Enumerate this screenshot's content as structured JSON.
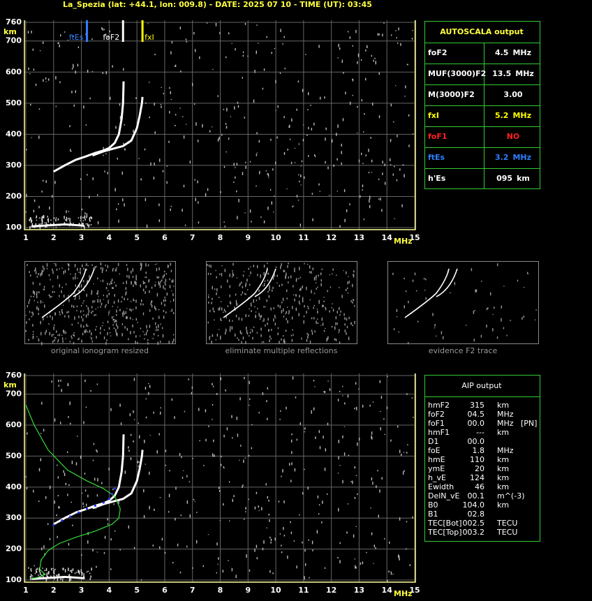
{
  "title": "La_Spezia (lat: +44.1, lon: 009.8) - DATE: 2025 07 10 - TIME (UT): 03:45",
  "top_plot": {
    "y_unit": "km",
    "x_unit": "MHz",
    "xlim": [
      1,
      15
    ],
    "ylim": [
      100,
      760
    ],
    "xticks": [
      1,
      2,
      3,
      4,
      5,
      6,
      7,
      8,
      9,
      10,
      11,
      12,
      13,
      14,
      15
    ],
    "yticks": [
      100,
      200,
      300,
      400,
      500,
      600,
      700,
      760
    ],
    "markers": [
      {
        "label": "ftEs",
        "value": 3.2,
        "color": "#2f7fff"
      },
      {
        "label": "foF2",
        "value": 4.5,
        "color": "#ffffff"
      },
      {
        "label": "fxI",
        "value": 5.2,
        "color": "#ffff00"
      }
    ],
    "traces": [
      {
        "x": [
          2.0,
          2.4,
          2.8,
          3.2,
          3.5,
          3.8,
          4.0,
          4.2,
          4.35,
          4.45,
          4.5,
          4.52
        ],
        "y": [
          280,
          300,
          318,
          330,
          340,
          348,
          356,
          372,
          400,
          450,
          500,
          570
        ]
      },
      {
        "x": [
          3.4,
          3.8,
          4.2,
          4.5,
          4.8,
          5.0,
          5.1,
          5.18,
          5.2
        ],
        "y": [
          332,
          345,
          355,
          362,
          380,
          420,
          460,
          500,
          520
        ]
      },
      {
        "x": [
          1.2,
          1.6,
          2.0,
          2.4,
          2.8,
          3.1
        ],
        "y": [
          104,
          106,
          108,
          110,
          108,
          106
        ]
      }
    ]
  },
  "autoscala": {
    "title": "AUTOSCALA output",
    "rows": [
      {
        "name": "foF2",
        "value": "4.5",
        "unit": "MHz",
        "color": "#ffffff"
      },
      {
        "name": "MUF(3000)F2",
        "value": "13.5",
        "unit": "MHz",
        "color": "#ffffff"
      },
      {
        "name": "M(3000)F2",
        "value": "3.00",
        "color": "#ffffff"
      },
      {
        "name": "fxI",
        "value": "5.2",
        "unit": "MHz",
        "color": "#ffff00"
      },
      {
        "name": "foF1",
        "value": "NO",
        "color": "#ff2020"
      },
      {
        "name": "ftEs",
        "value": "3.2",
        "unit": "MHz",
        "color": "#2f7fff"
      },
      {
        "name": "h'Es",
        "value": "095",
        "unit": "km",
        "color": "#ffffff"
      }
    ]
  },
  "thumbnails": [
    {
      "caption": "original ionogram resized"
    },
    {
      "caption": "eliminate multiple reflections"
    },
    {
      "caption": "evidence F2 trace"
    }
  ],
  "bottom_plot": {
    "y_unit": "km",
    "x_unit": "MHz",
    "xlim": [
      1,
      15
    ],
    "ylim": [
      100,
      760
    ],
    "xticks": [
      1,
      2,
      3,
      4,
      5,
      6,
      7,
      8,
      9,
      10,
      11,
      12,
      13,
      14,
      15
    ],
    "yticks": [
      100,
      200,
      300,
      400,
      500,
      600,
      700,
      760
    ],
    "traces": [
      {
        "x": [
          2.0,
          2.4,
          2.8,
          3.2,
          3.5,
          3.8,
          4.0,
          4.2,
          4.35,
          4.45,
          4.5,
          4.52
        ],
        "y": [
          280,
          300,
          318,
          330,
          340,
          348,
          356,
          372,
          400,
          450,
          500,
          570
        ]
      },
      {
        "x": [
          3.4,
          3.8,
          4.2,
          4.5,
          4.8,
          5.0,
          5.1,
          5.18,
          5.2
        ],
        "y": [
          332,
          345,
          355,
          362,
          380,
          420,
          460,
          500,
          520
        ]
      },
      {
        "x": [
          1.2,
          1.6,
          2.0,
          2.4,
          2.8,
          3.1
        ],
        "y": [
          104,
          106,
          108,
          110,
          108,
          106
        ]
      }
    ],
    "profile": {
      "color": "#33dd33",
      "x": [
        1.0,
        1.3,
        1.8,
        2.5,
        3.2,
        3.8,
        4.2,
        4.4,
        4.35,
        4.1,
        3.5,
        2.8,
        2.2,
        1.8,
        1.55,
        1.5,
        1.7,
        1.4,
        1.2
      ],
      "y": [
        665,
        600,
        520,
        455,
        420,
        395,
        370,
        330,
        300,
        280,
        258,
        238,
        218,
        195,
        165,
        135,
        118,
        108,
        104
      ]
    },
    "fit_points": {
      "color": "#2233ff",
      "x": [
        2.0,
        2.3,
        2.6,
        2.9,
        3.2,
        3.5,
        3.8,
        4.0,
        4.1,
        4.2
      ],
      "y": [
        278,
        292,
        305,
        318,
        330,
        340,
        350,
        362,
        378,
        395
      ]
    }
  },
  "aip": {
    "title": "AIP output",
    "rows": [
      {
        "name": "hmF2",
        "value": "315",
        "unit": "km"
      },
      {
        "name": "foF2",
        "value": "04.5",
        "unit": "MHz"
      },
      {
        "name": "foF1",
        "value": "00.0",
        "unit": "MHz",
        "note": "[PN]"
      },
      {
        "name": "hmF1",
        "value": "---",
        "unit": "km"
      },
      {
        "name": "D1",
        "value": "00.0"
      },
      {
        "name": "foE",
        "value": "1.8",
        "unit": "MHz"
      },
      {
        "name": "hmE",
        "value": "110",
        "unit": "km"
      },
      {
        "name": "ymE",
        "value": "20",
        "unit": "km"
      },
      {
        "name": "h_vE",
        "value": "124",
        "unit": "km"
      },
      {
        "name": "Ewidth",
        "value": "46",
        "unit": "km"
      },
      {
        "name": "DelN_vE",
        "value": "00.1",
        "unit": "m^(-3)"
      },
      {
        "name": "B0",
        "value": "104.0",
        "unit": "km"
      },
      {
        "name": "B1",
        "value": "02.8"
      },
      {
        "name": "TEC[Bot]",
        "value": "002.5",
        "unit": "TECU"
      },
      {
        "name": "TEC[Top]",
        "value": "003.2",
        "unit": "TECU"
      }
    ]
  }
}
